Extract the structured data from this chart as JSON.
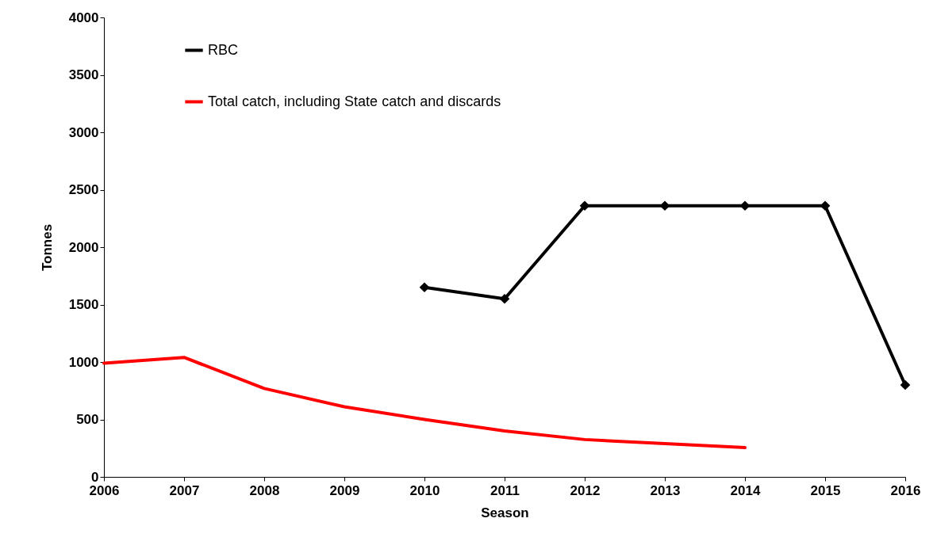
{
  "chart_data": {
    "type": "line",
    "xlabel": "Season",
    "ylabel": "Tonnes",
    "xlim": [
      2006,
      2016
    ],
    "xticks": [
      2006,
      2007,
      2008,
      2009,
      2010,
      2011,
      2012,
      2013,
      2014,
      2015,
      2016
    ],
    "ylim": [
      0,
      4000
    ],
    "yticks": [
      0,
      500,
      1000,
      1500,
      2000,
      2500,
      3000,
      3500,
      4000
    ],
    "grid": false,
    "legend": "top left",
    "series": [
      {
        "name": "RBC",
        "color": "#000000",
        "marker": "diamond",
        "x": [
          2010,
          2011,
          2012,
          2013,
          2014,
          2015,
          2016
        ],
        "values": [
          1650,
          1550,
          2360,
          2360,
          2360,
          2360,
          800
        ]
      },
      {
        "name": "Total catch, including State catch and discards",
        "color": "#ff0000",
        "marker": "none",
        "x": [
          2006,
          2007,
          2008,
          2009,
          2010,
          2011,
          2012,
          2013,
          2014
        ],
        "values": [
          990,
          1040,
          770,
          610,
          500,
          400,
          325,
          290,
          255
        ]
      }
    ]
  }
}
